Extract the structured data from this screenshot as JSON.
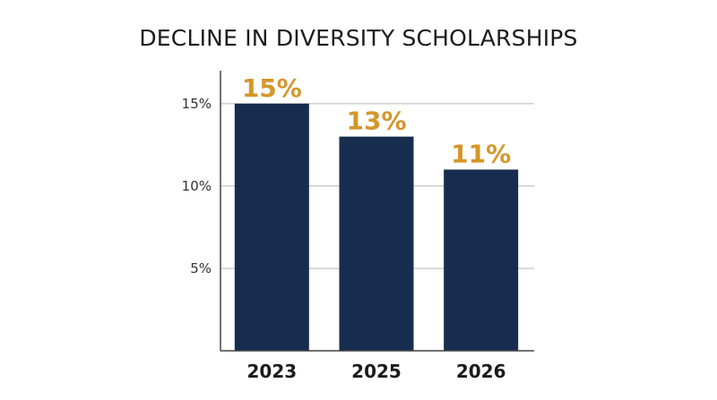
{
  "chart_data": {
    "type": "bar",
    "title": "DECLINE IN DIVERSITY SCHOLARSHIPS",
    "xlabel": "",
    "ylabel": "",
    "categories": [
      "2023",
      "2025",
      "2026"
    ],
    "values": [
      15,
      13,
      11
    ],
    "data_labels": [
      "15%",
      "13%",
      "11%"
    ],
    "ylim": [
      0,
      17
    ],
    "yticks": [
      5,
      10,
      15
    ],
    "ytick_labels": [
      "5%",
      "10%",
      "15%"
    ],
    "grid": true,
    "legend": "none",
    "bar_color": "#172d4f",
    "label_color": "#d4962b"
  }
}
